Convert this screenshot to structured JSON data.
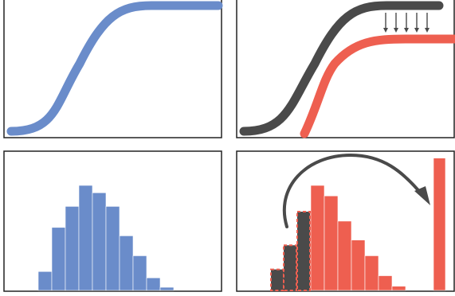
{
  "colors": {
    "blue": "#6a8cca",
    "red": "#ee5f50",
    "dark": "#4a4a4a",
    "frame": "#222222"
  },
  "icons": {
    "down_arrows": "down-arrow-icon",
    "curved_arrow": "curved-arrow-icon"
  },
  "chart_data": [
    {
      "type": "line",
      "panel": "top-left",
      "series": [
        {
          "values_shape": "sigmoid",
          "y": [
            0.03,
            0.97
          ]
        }
      ]
    },
    {
      "type": "line",
      "panel": "top-right",
      "series": [
        {
          "values_shape": "sigmoid",
          "y": [
            0.03,
            0.97
          ]
        },
        {
          "values_shape": "sigmoid",
          "y": [
            0.0,
            0.72
          ]
        }
      ]
    },
    {
      "type": "bar",
      "panel": "bottom-left",
      "values": [
        0.18,
        0.6,
        0.8,
        1.0,
        0.93,
        0.8,
        0.52,
        0.33,
        0.12,
        0.03
      ]
    },
    {
      "type": "bar",
      "panel": "bottom-right",
      "series": [
        {
          "values": [
            0.2,
            0.43,
            0.75
          ]
        },
        {
          "values": [
            0.75,
            1.0,
            0.9,
            0.66,
            0.48,
            0.33,
            0.14,
            0.04,
            1.26
          ]
        }
      ]
    }
  ]
}
